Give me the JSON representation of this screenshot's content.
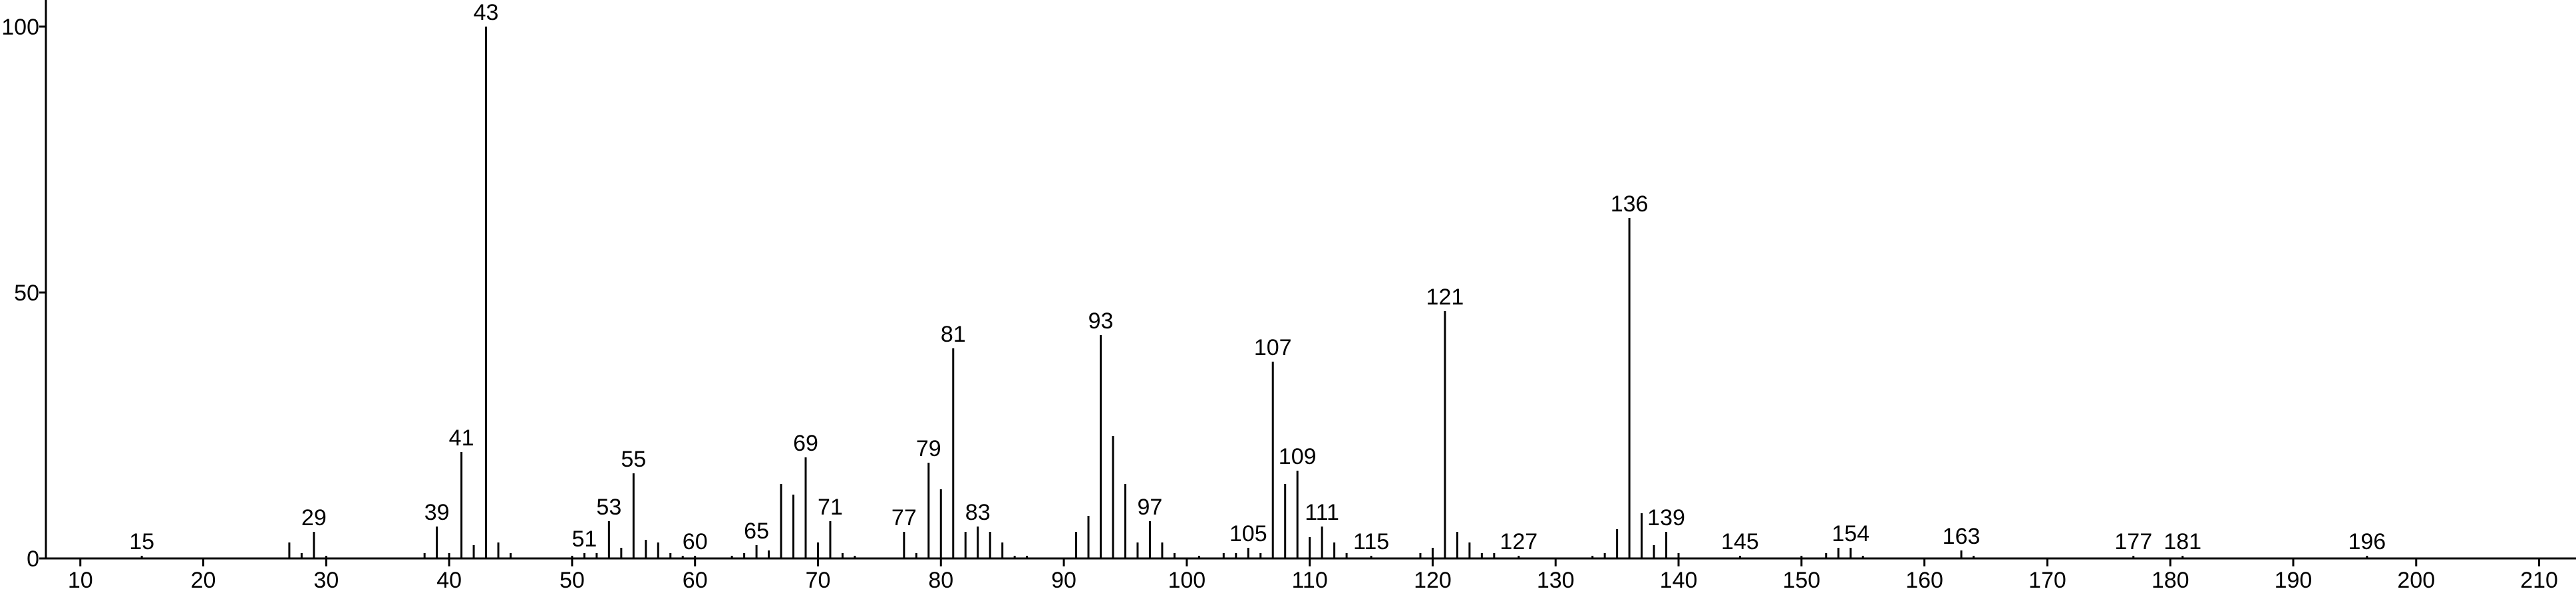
{
  "chart_data": {
    "type": "stem",
    "x": [
      15,
      27,
      28,
      29,
      30,
      38,
      39,
      40,
      41,
      42,
      43,
      44,
      45,
      50,
      51,
      52,
      53,
      54,
      55,
      56,
      57,
      58,
      59,
      60,
      63,
      64,
      65,
      66,
      67,
      68,
      69,
      70,
      71,
      72,
      73,
      77,
      78,
      79,
      80,
      81,
      82,
      83,
      84,
      85,
      86,
      87,
      91,
      92,
      93,
      94,
      95,
      96,
      97,
      98,
      99,
      101,
      103,
      104,
      105,
      106,
      107,
      108,
      109,
      110,
      111,
      112,
      113,
      115,
      119,
      120,
      121,
      122,
      123,
      124,
      125,
      127,
      133,
      134,
      135,
      136,
      137,
      138,
      139,
      140,
      145,
      150,
      152,
      153,
      154,
      155,
      163,
      164,
      177,
      181,
      196
    ],
    "values": [
      0.5,
      3,
      1,
      5,
      0.5,
      1,
      6,
      1,
      20,
      2.5,
      100,
      3,
      1,
      0.5,
      1,
      1,
      7,
      2,
      16,
      3.5,
      3,
      1,
      0.5,
      0.5,
      0.5,
      1,
      2.5,
      1.5,
      14,
      12,
      19,
      3,
      7,
      1,
      0.5,
      5,
      1,
      18,
      13,
      39.5,
      5,
      6,
      5,
      3,
      0.5,
      0.5,
      5,
      8,
      42,
      23,
      14,
      3,
      7,
      3,
      1,
      0.5,
      1,
      1,
      2,
      1,
      37,
      14,
      16.5,
      4,
      6,
      3,
      1,
      0.5,
      1,
      2,
      46.5,
      5,
      3,
      1,
      1,
      0.5,
      0.5,
      1,
      5.5,
      64,
      8.5,
      2.5,
      5,
      1,
      0.5,
      0.5,
      1,
      2,
      2,
      0.5,
      1.5,
      0.5,
      0.5,
      0.5,
      0.5
    ],
    "peak_labels": [
      15,
      29,
      39,
      41,
      43,
      51,
      53,
      55,
      60,
      65,
      69,
      71,
      77,
      79,
      81,
      83,
      93,
      97,
      105,
      107,
      109,
      111,
      115,
      121,
      127,
      136,
      139,
      145,
      154,
      163,
      177,
      181,
      196
    ],
    "color": "#000000",
    "xlim": [
      7.2,
      213
    ],
    "xticks": [
      10,
      20,
      30,
      40,
      50,
      60,
      70,
      80,
      90,
      100,
      110,
      120,
      130,
      140,
      150,
      160,
      170,
      180,
      190,
      200,
      210
    ],
    "ylim": [
      0,
      105
    ],
    "yticks": [
      0,
      50,
      100
    ]
  }
}
